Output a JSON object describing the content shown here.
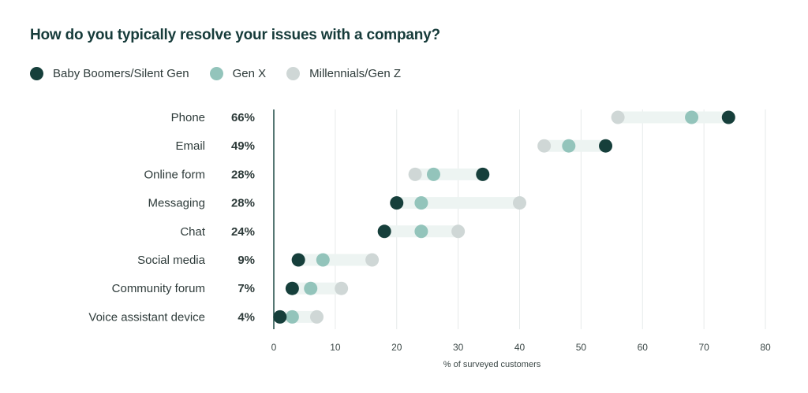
{
  "chart_data": {
    "type": "scatter",
    "title": "How do you typically resolve your issues with a company?",
    "xlabel": "% of surveyed customers",
    "xlim": [
      0,
      80
    ],
    "xticks": [
      0,
      10,
      20,
      30,
      40,
      50,
      60,
      70,
      80
    ],
    "grid": true,
    "legend_position": "top-left",
    "categories": [
      "Phone",
      "Email",
      "Online form",
      "Messaging",
      "Chat",
      "Social media",
      "Community forum",
      "Voice assistant device"
    ],
    "totals": [
      "66%",
      "49%",
      "28%",
      "28%",
      "24%",
      "9%",
      "7%",
      "4%"
    ],
    "series": [
      {
        "name": "Baby Boomers/Silent Gen",
        "color": "#163f3b",
        "values": [
          74,
          54,
          34,
          20,
          18,
          4,
          3,
          1
        ]
      },
      {
        "name": "Gen X",
        "color": "#93c4bb",
        "values": [
          68,
          48,
          26,
          24,
          24,
          8,
          6,
          3
        ]
      },
      {
        "name": "Millennials/Gen Z",
        "color": "#cfd7d6",
        "values": [
          56,
          44,
          23,
          40,
          30,
          16,
          11,
          7
        ]
      }
    ],
    "range_band_color": "#edf4f2",
    "grid_color": "#e6eaea",
    "axis_color": "#1e4a45"
  }
}
